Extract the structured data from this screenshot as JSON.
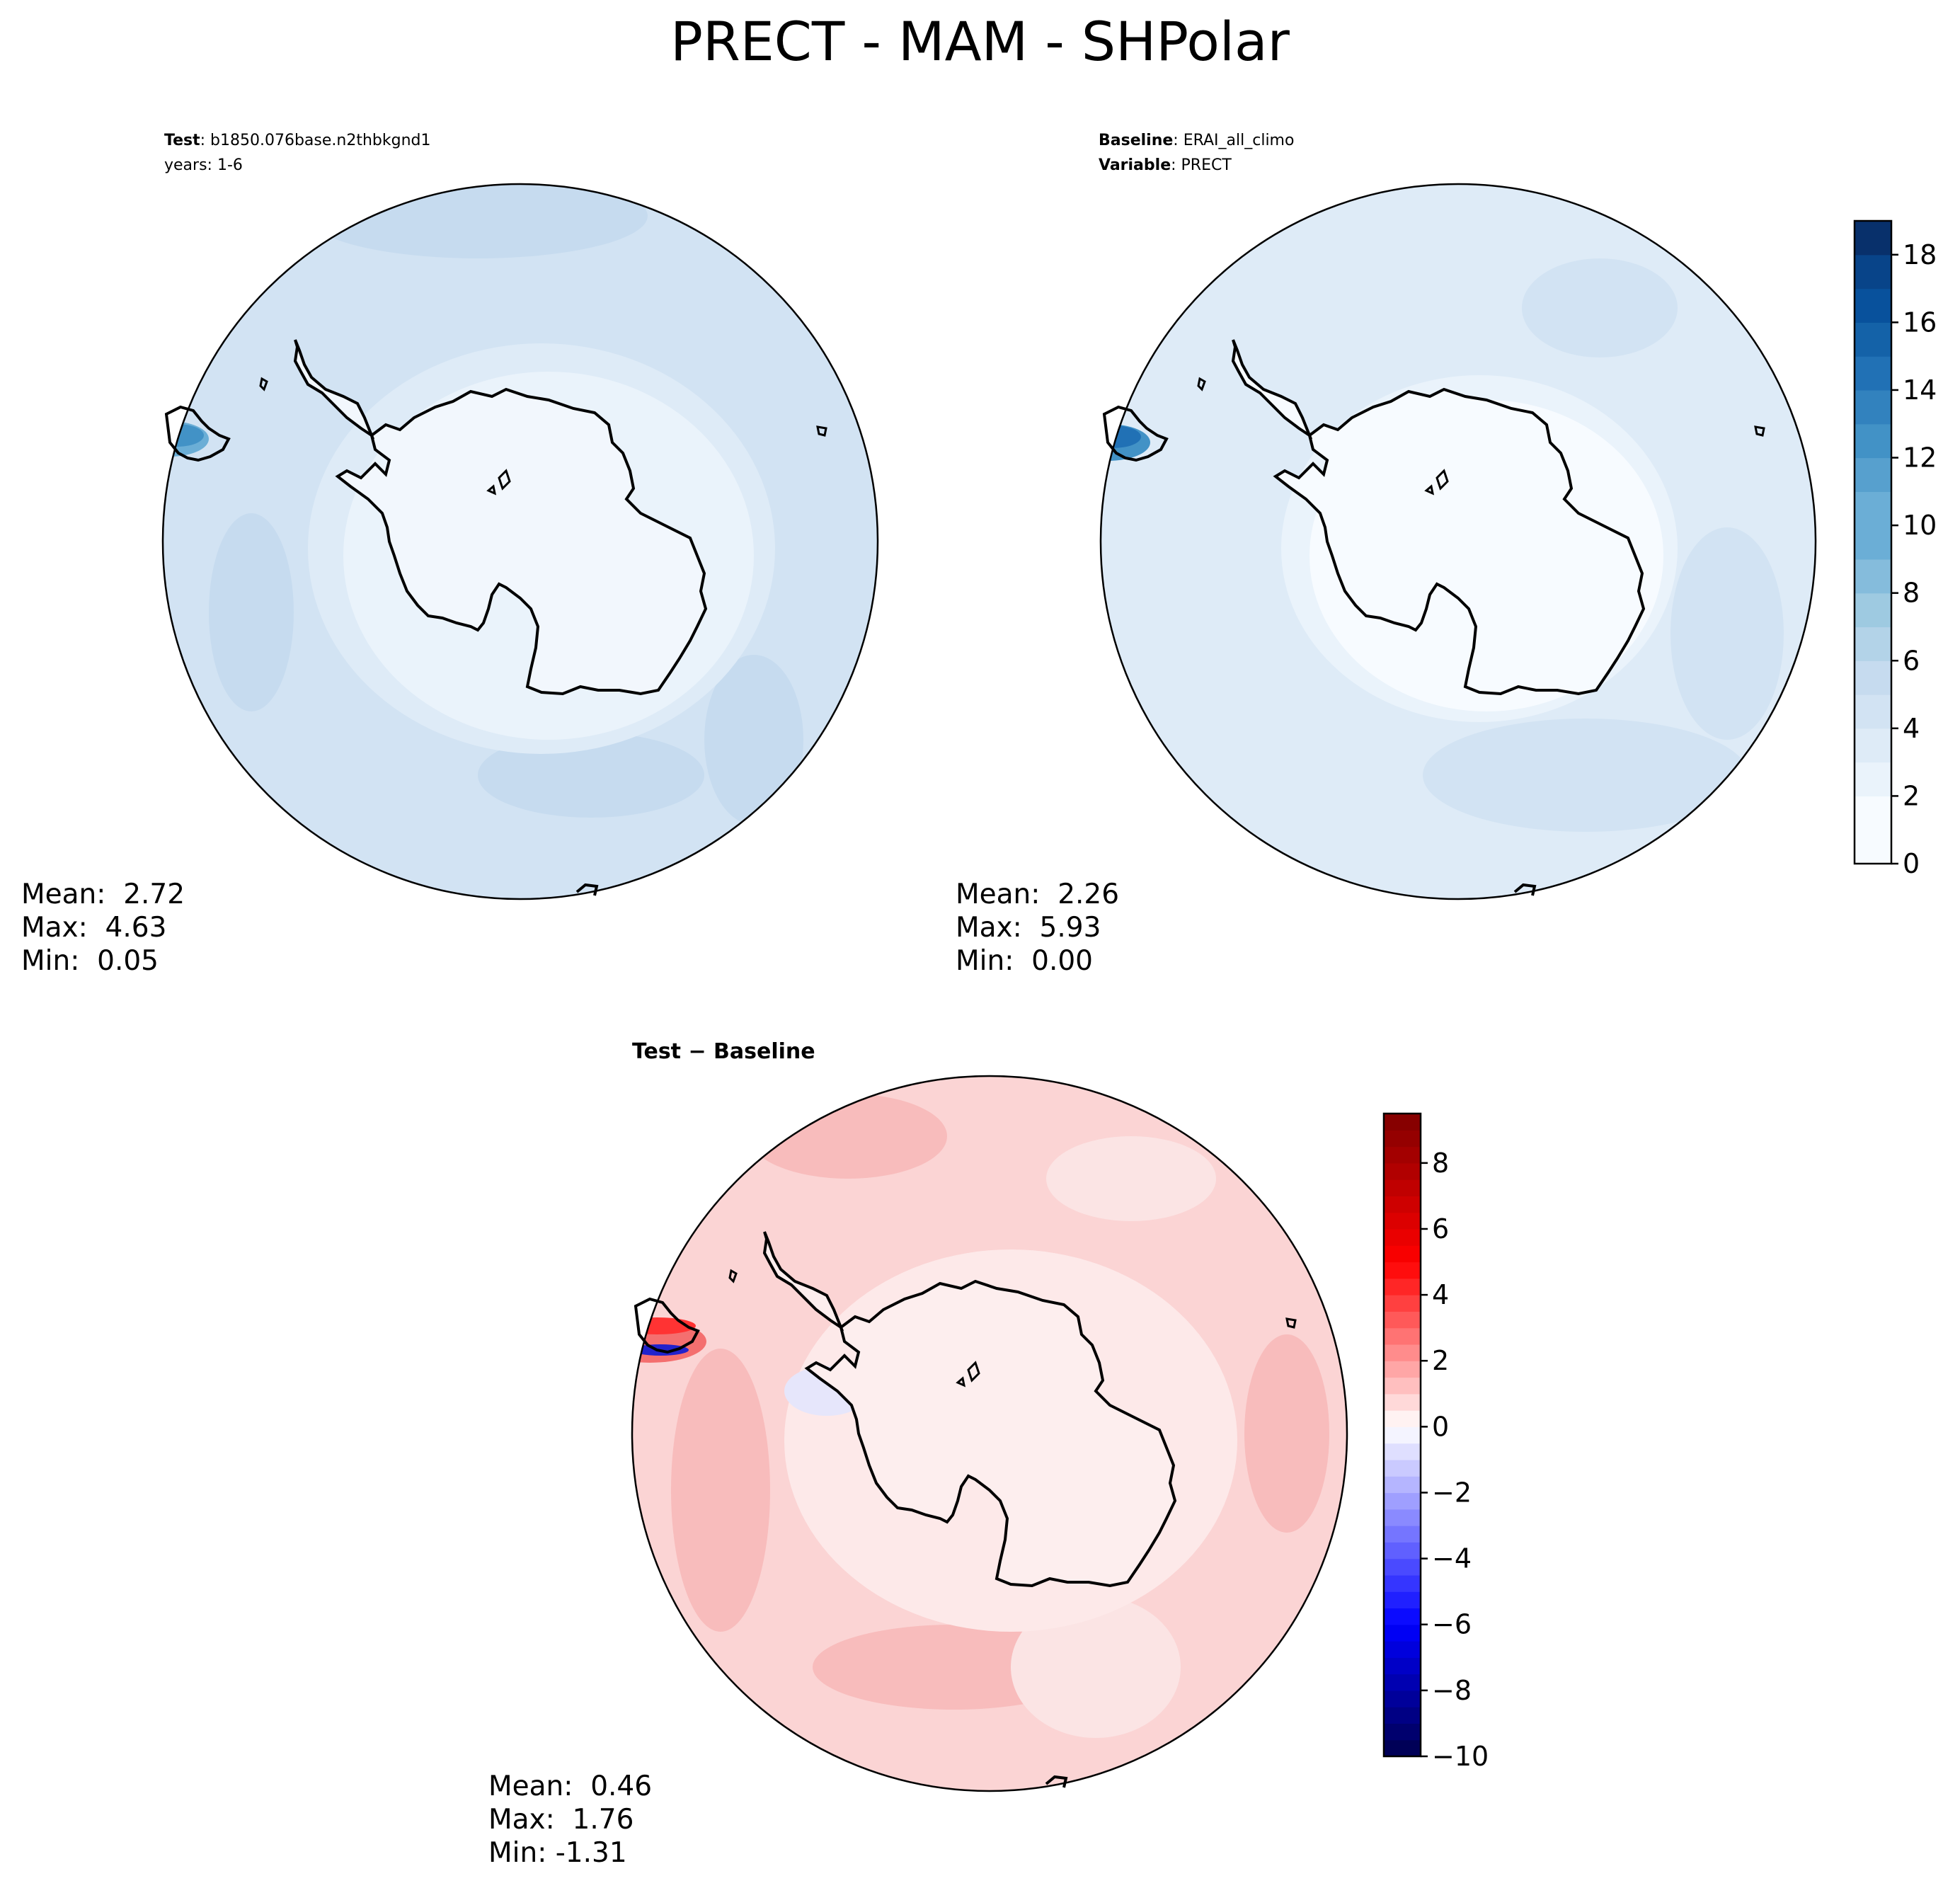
{
  "figure": {
    "title": "PRECT - MAM - SHPolar"
  },
  "panels": {
    "test": {
      "label_key": "Test",
      "label_value": ": b1850.076base.n2thbkgnd1",
      "years": "years: 1-6",
      "stats": [
        "Mean:  2.72",
        "Max:  4.63",
        "Min:  0.05"
      ]
    },
    "baseline": {
      "label_key": "Baseline",
      "label_value": ": ERAI_all_climo",
      "var_key": "Variable",
      "var_value": ": PRECT",
      "stats": [
        "Mean:  2.26",
        "Max:  5.93",
        "Min:  0.00"
      ]
    },
    "diff": {
      "label": "Test − Baseline",
      "stats": [
        "Mean:  0.46",
        "Max:  1.76",
        "Min: -1.31"
      ]
    }
  },
  "colorbars": {
    "main": {
      "ticks": [
        "0",
        "2",
        "4",
        "6",
        "8",
        "10",
        "12",
        "14",
        "16",
        "18"
      ],
      "range": [
        0,
        19
      ]
    },
    "diff": {
      "ticks": [
        "−10",
        "−8",
        "−6",
        "−4",
        "−2",
        "0",
        "2",
        "4",
        "6",
        "8"
      ],
      "range": [
        -10,
        9.5
      ]
    }
  },
  "colors": {
    "blues": [
      "#f7fbff",
      "#eaf3fb",
      "#deebf7",
      "#d2e3f3",
      "#c6dbef",
      "#b3d3e8",
      "#9ecae1",
      "#85bcdc",
      "#6baed6",
      "#57a0ce",
      "#4292c6",
      "#3282be",
      "#2171b5",
      "#1462a8",
      "#08519c",
      "#084489",
      "#08306b"
    ],
    "diff_positive": "#f6bcbc",
    "diff_neutral": "#fbeaea",
    "coastline": "#000000"
  }
}
